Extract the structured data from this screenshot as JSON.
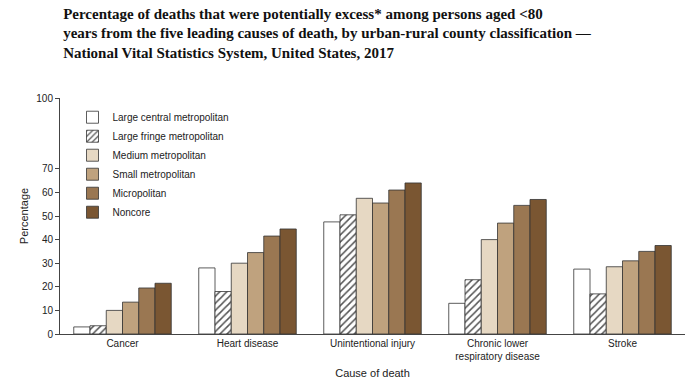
{
  "chart_data": {
    "type": "bar",
    "title": "Percentage of deaths that were potentially excess* among persons aged <80\nyears from the five leading causes of death, by urban-rural county classification —\nNational Vital Statistics System, United States, 2017",
    "x_label": "Cause of death",
    "y_label": "Percentage",
    "categories": [
      "Cancer",
      "Heart disease",
      "Unintentional injury",
      "Chronic lower respiratory disease",
      "Stroke"
    ],
    "series": [
      {
        "name": "Large central metropolitan",
        "color": "#ffffff",
        "values": [
          3,
          28,
          47.5,
          13,
          27.5
        ]
      },
      {
        "name": "Large fringe metropolitan",
        "color": "#ffffff",
        "marker": "hatched",
        "values": [
          3.5,
          18,
          50.5,
          23,
          17
        ]
      },
      {
        "name": "Medium metropolitan",
        "color": "#e6d8c3",
        "values": [
          10,
          30,
          57.5,
          40,
          28.5
        ]
      },
      {
        "name": "Small metropolitan",
        "color": "#bfa27e",
        "values": [
          13.5,
          34.5,
          55.5,
          47,
          31
        ]
      },
      {
        "name": "Micropolitan",
        "color": "#9a7752",
        "values": [
          19.5,
          41.5,
          61,
          54.5,
          35
        ]
      },
      {
        "name": "Noncore",
        "color": "#7a5632",
        "values": [
          21.5,
          44.5,
          64,
          57,
          37.5
        ]
      }
    ],
    "ylim": [
      0,
      100
    ],
    "yticks": [
      0,
      10,
      20,
      30,
      40,
      50,
      60,
      70,
      100
    ],
    "grid": false,
    "legend": "upper left"
  }
}
